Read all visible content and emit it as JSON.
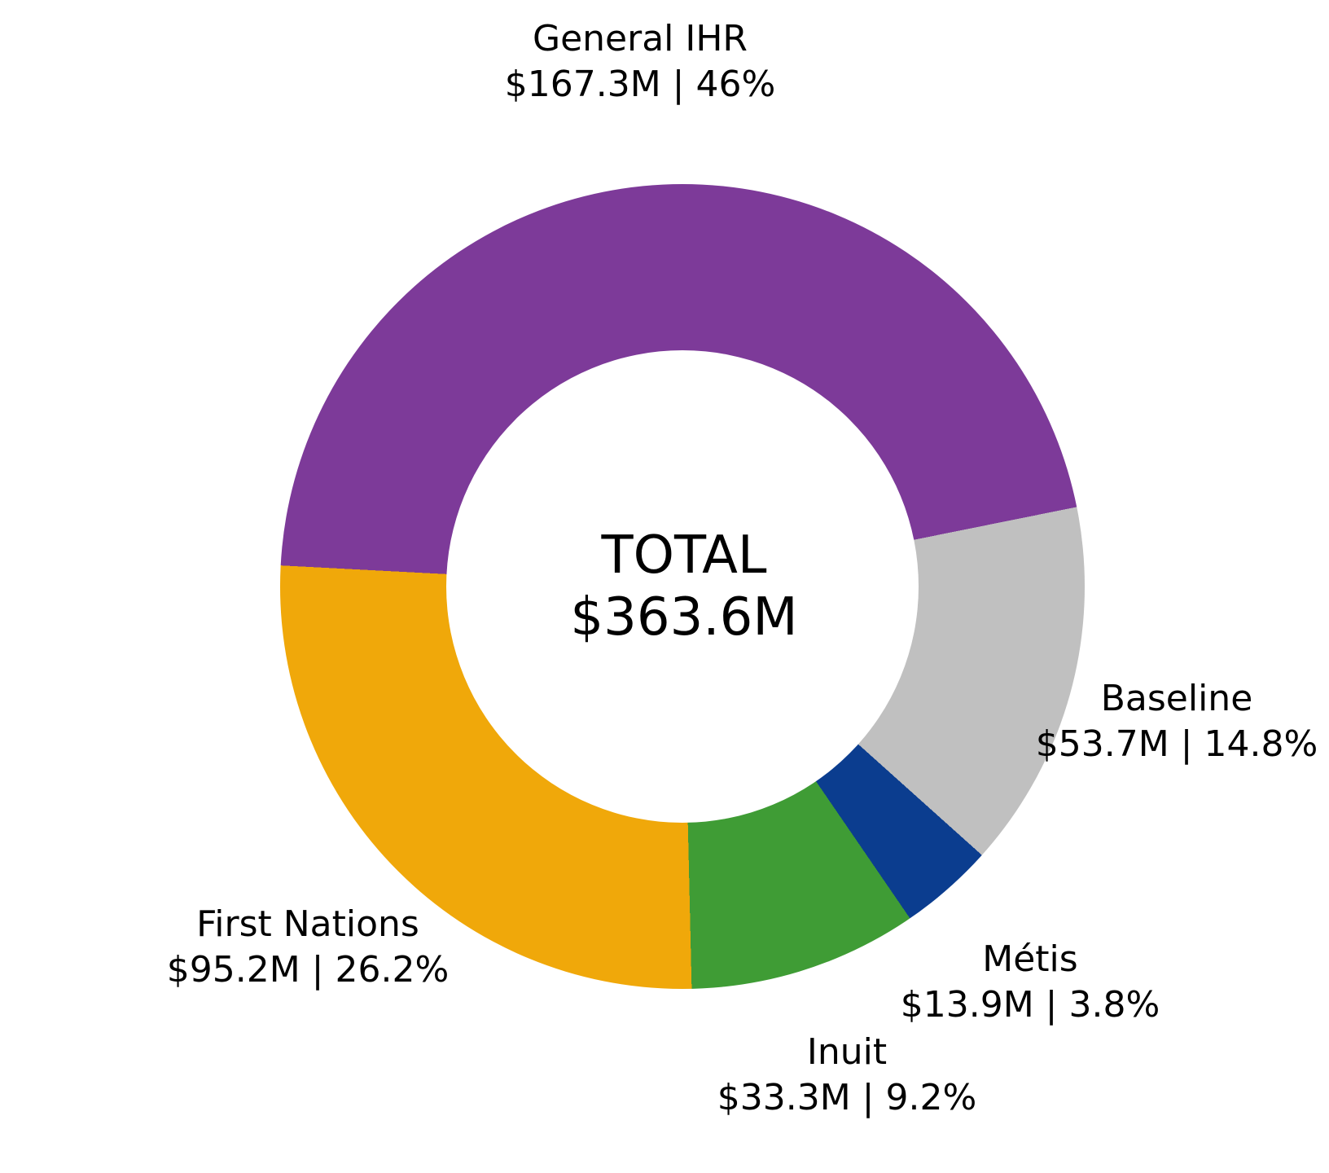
{
  "chart_data": {
    "type": "pie",
    "subtype": "donut",
    "title": "",
    "center": {
      "label": "TOTAL",
      "value": "$363.6M"
    },
    "total_millions": 363.6,
    "start_angle_deg_clockwise_from_top": 273,
    "direction": "clockwise",
    "inner_radius_ratio": 0.59,
    "legend_position": "none",
    "labels_position": "outside",
    "segments": [
      {
        "label": "General IHR",
        "value_millions": 167.3,
        "percent": 46,
        "display": "$167.3M | 46%",
        "color": "#7d3a99"
      },
      {
        "label": "Baseline",
        "value_millions": 53.7,
        "percent": 14.8,
        "display": "$53.7M | 14.8%",
        "color": "#c0c0c0"
      },
      {
        "label": "Métis",
        "value_millions": 13.9,
        "percent": 3.8,
        "display": "$13.9M | 3.8%",
        "color": "#0b3d8f"
      },
      {
        "label": "Inuit",
        "value_millions": 33.3,
        "percent": 9.2,
        "display": "$33.3M | 9.2%",
        "color": "#3f9c35"
      },
      {
        "label": "First Nations",
        "value_millions": 95.2,
        "percent": 26.2,
        "display": "$95.2M | 26.2%",
        "color": "#f0a80a"
      }
    ]
  }
}
